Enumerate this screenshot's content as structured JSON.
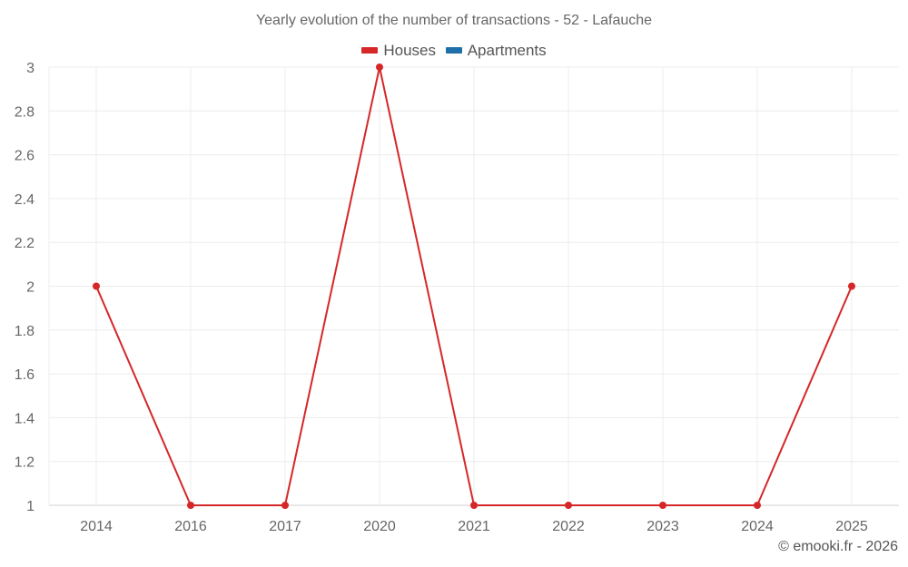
{
  "title": "Yearly evolution of the number of transactions - 52 - Lafauche",
  "legend": [
    {
      "label": "Houses",
      "color": "#d62728"
    },
    {
      "label": "Apartments",
      "color": "#1f6fa8"
    }
  ],
  "credit": "© emooki.fr - 2026",
  "chart_data": {
    "type": "line",
    "title": "Yearly evolution of the number of transactions - 52 - Lafauche",
    "xlabel": "",
    "ylabel": "",
    "categories": [
      "2014",
      "2016",
      "2017",
      "2020",
      "2021",
      "2022",
      "2023",
      "2024",
      "2025"
    ],
    "series": [
      {
        "name": "Houses",
        "color": "#d62728",
        "values": [
          2,
          1,
          1,
          3,
          1,
          1,
          1,
          1,
          2
        ]
      },
      {
        "name": "Apartments",
        "color": "#1f6fa8",
        "values": []
      }
    ],
    "ylim": [
      1,
      3
    ],
    "yticks": [
      "1",
      "1.2",
      "1.4",
      "1.6",
      "1.8",
      "2",
      "2.2",
      "2.4",
      "2.6",
      "2.8",
      "3"
    ],
    "grid": true,
    "legend_position": "top"
  }
}
